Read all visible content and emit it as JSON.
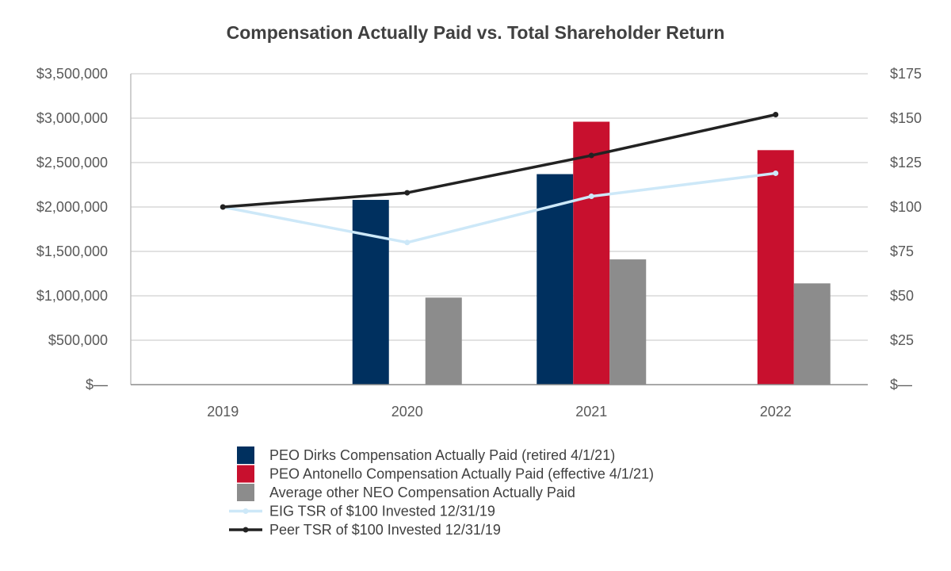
{
  "chart_data": {
    "type": "bar",
    "title": "Compensation Actually Paid vs. Total Shareholder Return",
    "categories": [
      "2019",
      "2020",
      "2021",
      "2022"
    ],
    "left_axis": {
      "ylim": [
        0,
        3500000
      ],
      "ticks": [
        0,
        500000,
        1000000,
        1500000,
        2000000,
        2500000,
        3000000,
        3500000
      ],
      "tick_labels": [
        "$—",
        "$500,000",
        "$1,000,000",
        "$1,500,000",
        "$2,000,000",
        "$2,500,000",
        "$3,000,000",
        "$3,500,000"
      ]
    },
    "right_axis": {
      "ylim": [
        0,
        175
      ],
      "ticks": [
        0,
        25,
        50,
        75,
        100,
        125,
        150,
        175
      ],
      "tick_labels": [
        "$—",
        "$25",
        "$50",
        "$75",
        "$100",
        "$125",
        "$150",
        "$175"
      ]
    },
    "grid": true,
    "legend_position": "bottom",
    "bar_series": [
      {
        "name": "PEO Dirks Compensation Actually Paid (retired 4/1/21)",
        "color": "#00305F",
        "values": [
          null,
          2080000,
          2370000,
          null
        ]
      },
      {
        "name": "PEO Antonello Compensation Actually Paid (effective 4/1/21)",
        "color": "#C8102E",
        "values": [
          null,
          null,
          2960000,
          2640000
        ]
      },
      {
        "name": "Average other NEO Compensation Actually Paid",
        "color": "#8C8C8C",
        "values": [
          null,
          980000,
          1410000,
          1140000
        ]
      }
    ],
    "line_series": [
      {
        "name": "EIG TSR of $100 Invested 12/31/19",
        "color": "#CDE8F8",
        "axis": "right",
        "values": [
          100,
          80,
          106,
          119
        ]
      },
      {
        "name": "Peer TSR of $100 Invested 12/31/19",
        "color": "#222222",
        "axis": "right",
        "values": [
          100,
          108,
          129,
          152
        ]
      }
    ]
  }
}
